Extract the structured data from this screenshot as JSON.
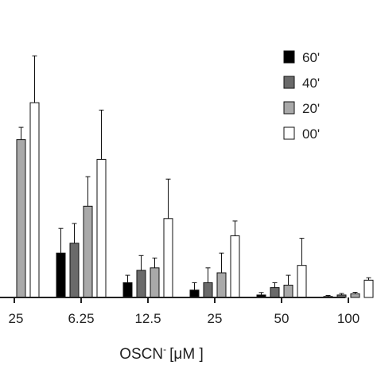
{
  "chart_data": {
    "type": "bar",
    "categories": [
      "25",
      "6.25",
      "12.5",
      "25",
      "50",
      "100"
    ],
    "xlabel": "OSCN",
    "xlabel_superscript": "-",
    "xlabel_unit": "[μM ]",
    "ylabel": "",
    "ylim": [
      0,
      100
    ],
    "grid": false,
    "legend_position": "top-right",
    "series": [
      {
        "name": "60'",
        "color": "#000000",
        "values": [
          null,
          18,
          6,
          3,
          1,
          0.4
        ],
        "errors": [
          null,
          10,
          3,
          3,
          1,
          0.4
        ]
      },
      {
        "name": "40'",
        "color": "#6a6a6a",
        "values": [
          null,
          22,
          11,
          6,
          4,
          1
        ],
        "errors": [
          null,
          8,
          6,
          6,
          2,
          0.6
        ]
      },
      {
        "name": "20'",
        "color": "#a9a9a9",
        "values": [
          64,
          37,
          12,
          10,
          5,
          1.5
        ],
        "errors": [
          5,
          12,
          4,
          8,
          4,
          0.6
        ]
      },
      {
        "name": "00'",
        "color": "#ffffff",
        "values": [
          79,
          56,
          32,
          25,
          13,
          7
        ],
        "errors": [
          19,
          20,
          16,
          6,
          11,
          1
        ]
      }
    ]
  }
}
